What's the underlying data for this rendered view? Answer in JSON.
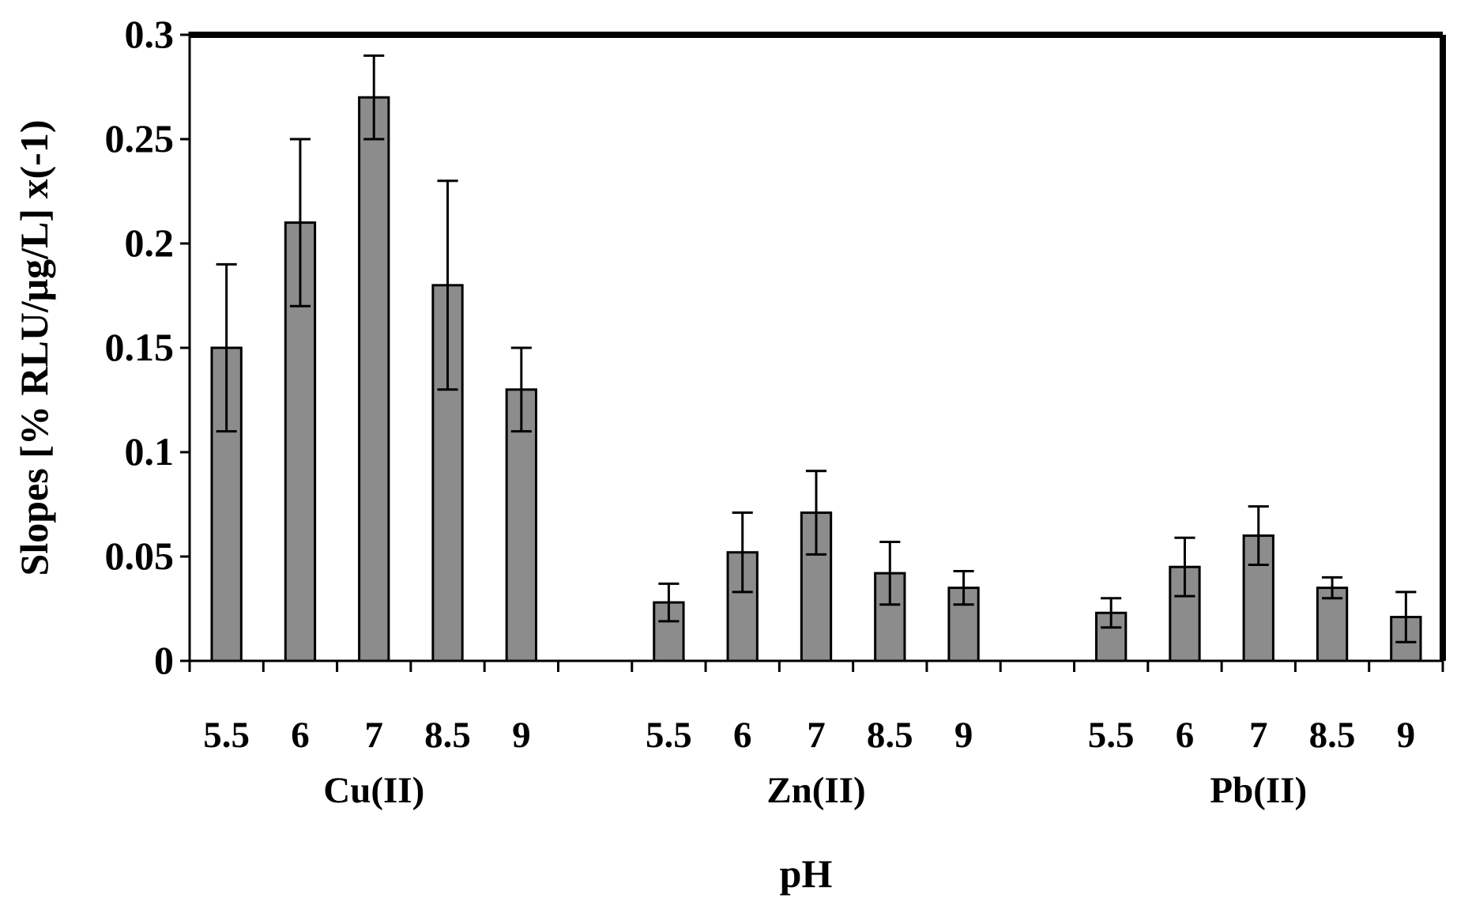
{
  "chart_data": {
    "type": "bar",
    "xlabel": "pH",
    "ylabel": "Slopes [% RLU/μg/L] x(-1)",
    "ylim": [
      0,
      0.3
    ],
    "yticks": [
      "0",
      "0.05",
      "0.1",
      "0.15",
      "0.2",
      "0.25",
      "0.3"
    ],
    "grid": false,
    "colors": {
      "bar": "#8c8c8c",
      "stroke": "#000000"
    },
    "groups": [
      {
        "name": "Cu(II)",
        "categories": [
          "5.5",
          "6",
          "7",
          "8.5",
          "9"
        ],
        "values": [
          0.15,
          0.21,
          0.27,
          0.18,
          0.13
        ],
        "errors": [
          0.04,
          0.04,
          0.02,
          0.05,
          0.02
        ]
      },
      {
        "name": "Zn(II)",
        "categories": [
          "5.5",
          "6",
          "7",
          "8.5",
          "9"
        ],
        "values": [
          0.028,
          0.052,
          0.071,
          0.042,
          0.035
        ],
        "errors": [
          0.009,
          0.019,
          0.02,
          0.015,
          0.008
        ]
      },
      {
        "name": "Pb(II)",
        "categories": [
          "5.5",
          "6",
          "7",
          "8.5",
          "9"
        ],
        "values": [
          0.023,
          0.045,
          0.06,
          0.035,
          0.021
        ],
        "errors": [
          0.007,
          0.014,
          0.014,
          0.005,
          0.012
        ]
      }
    ]
  }
}
